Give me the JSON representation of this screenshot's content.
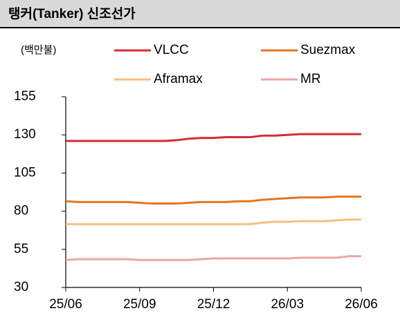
{
  "chart_data": {
    "type": "line",
    "title": "탱커(Tanker) 신조선가",
    "unit": "(백만불)",
    "categories": [
      "25/06",
      null,
      null,
      null,
      null,
      null,
      "25/09",
      null,
      null,
      null,
      null,
      null,
      "25/12",
      null,
      null,
      null,
      null,
      null,
      "26/03",
      null,
      null,
      null,
      null,
      null,
      "26/06"
    ],
    "series": [
      {
        "name": "VLCC",
        "color": "#d62b35",
        "values": [
          126,
          126,
          126,
          126,
          126,
          126,
          126,
          126,
          126,
          126.5,
          127.5,
          128,
          128,
          128.5,
          128.5,
          128.5,
          129.5,
          129.5,
          130,
          130.5,
          130.5,
          130.5,
          130.5,
          130.5,
          130.5
        ]
      },
      {
        "name": "Suezmax",
        "color": "#e8731f",
        "values": [
          86.5,
          86,
          86,
          86,
          86,
          86,
          85.5,
          85,
          85,
          85,
          85.5,
          86,
          86,
          86,
          86.5,
          86.5,
          87.5,
          88,
          88.5,
          89,
          89,
          89,
          89.5,
          89.5,
          89.5
        ]
      },
      {
        "name": "Aframax",
        "color": "#f7bf7f",
        "values": [
          71.5,
          71.5,
          71.5,
          71.5,
          71.5,
          71.5,
          71.5,
          71.5,
          71.5,
          71.5,
          71.5,
          71.5,
          71.5,
          71.5,
          71.5,
          71.5,
          72.5,
          73,
          73,
          73.5,
          73.5,
          73.5,
          74,
          74.5,
          74.5
        ]
      },
      {
        "name": "MR",
        "color": "#eba5a8",
        "values": [
          48,
          48.5,
          48.5,
          48.5,
          48.5,
          48.5,
          48,
          48,
          48,
          48,
          48,
          48.5,
          49,
          49,
          49,
          49,
          49,
          49,
          49,
          49.5,
          49.5,
          49.5,
          49.5,
          50.5,
          50.5
        ]
      }
    ],
    "ylim": [
      30,
      155
    ],
    "yticks": [
      30,
      55,
      80,
      105,
      130,
      155
    ]
  }
}
